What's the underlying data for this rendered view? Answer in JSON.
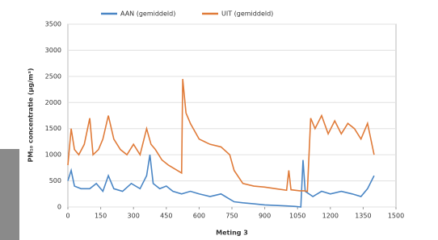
{
  "chart_data": {
    "type": "line",
    "x_label": "Meting 3",
    "y_label": "PM₁₀ concentratie (µg/m³)",
    "xlim": [
      0,
      1500
    ],
    "xticks": [
      0,
      150,
      300,
      450,
      600,
      750,
      900,
      1050,
      1200,
      1350,
      1500
    ],
    "ylim": [
      0,
      3500
    ],
    "yticks": [
      0,
      500,
      1000,
      1500,
      2000,
      2500,
      3000,
      3500
    ],
    "grid": true,
    "legend": "top",
    "series": [
      {
        "name": "AAN (gemiddeld)",
        "color": "#4a86c5",
        "x": [
          0,
          15,
          30,
          60,
          100,
          130,
          160,
          185,
          210,
          250,
          290,
          330,
          360,
          375,
          390,
          420,
          450,
          480,
          520,
          560,
          600,
          650,
          700,
          740,
          760,
          800,
          850,
          900,
          950,
          1000,
          1040,
          1065,
          1075,
          1085,
          1120,
          1160,
          1200,
          1250,
          1300,
          1340,
          1370,
          1400
        ],
        "values": [
          500,
          700,
          400,
          350,
          350,
          450,
          300,
          600,
          350,
          300,
          450,
          350,
          600,
          1000,
          450,
          350,
          400,
          300,
          250,
          300,
          250,
          200,
          250,
          150,
          100,
          80,
          60,
          40,
          30,
          20,
          10,
          0,
          900,
          300,
          200,
          300,
          250,
          300,
          250,
          200,
          350,
          600
        ]
      },
      {
        "name": "UIT (gemiddeld)",
        "color": "#e07b39",
        "x": [
          0,
          15,
          30,
          50,
          75,
          100,
          115,
          140,
          160,
          185,
          210,
          240,
          270,
          300,
          330,
          360,
          380,
          400,
          430,
          460,
          500,
          520,
          525,
          540,
          560,
          600,
          650,
          700,
          740,
          760,
          800,
          850,
          900,
          950,
          1000,
          1010,
          1020,
          1060,
          1080,
          1095,
          1110,
          1130,
          1160,
          1190,
          1220,
          1250,
          1280,
          1310,
          1340,
          1370,
          1400
        ],
        "values": [
          800,
          1500,
          1100,
          1000,
          1200,
          1700,
          1000,
          1100,
          1300,
          1750,
          1300,
          1100,
          1000,
          1200,
          1000,
          1500,
          1200,
          1100,
          900,
          800,
          700,
          650,
          2450,
          1800,
          1600,
          1300,
          1200,
          1150,
          1000,
          700,
          450,
          400,
          380,
          350,
          320,
          700,
          330,
          310,
          310,
          300,
          1700,
          1500,
          1750,
          1400,
          1650,
          1400,
          1600,
          1500,
          1300,
          1600,
          1000
        ]
      }
    ]
  }
}
